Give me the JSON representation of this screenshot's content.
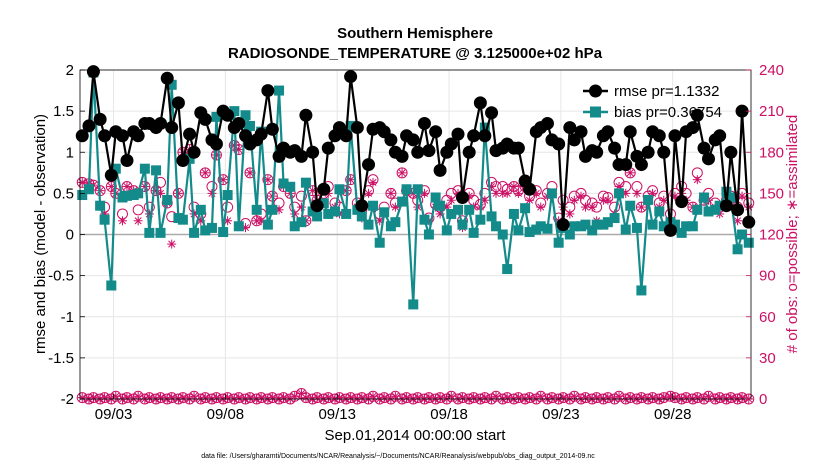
{
  "chart_data": {
    "type": "line",
    "title": "Southern Hemisphere",
    "subtitle": "RADIOSONDE_TEMPERATURE @ 3.125000e+02 hPa",
    "xlabel": "Sep.01,2014 00:00:00 start",
    "ylabel": "rmse and bias (model - observation)",
    "ylabel_right": "# of obs: o=possible; ∗=assimilated",
    "footnote": "data file: /Users/gharamti/Documents/NCAR/Reanalysis/~/Documents/NCAR/Reanalysis/webpub/obs_diag_output_2014-09.nc",
    "xlim": [
      1.5,
      31.5
    ],
    "ylim": [
      -2,
      2
    ],
    "ylim_right": [
      0,
      240
    ],
    "x_tick_values": [
      3,
      8,
      13,
      18,
      23,
      28
    ],
    "x_tick_labels": [
      "09/03",
      "09/08",
      "09/13",
      "09/18",
      "09/23",
      "09/28"
    ],
    "y_tick_labels": [
      "2",
      "1.5",
      "1",
      "0.5",
      "0",
      "-0.5",
      "-1",
      "-1.5",
      "-2"
    ],
    "y_right_tick_labels": [
      "240",
      "210",
      "180",
      "150",
      "120",
      "90",
      "60",
      "30",
      "0"
    ],
    "legend": [
      "rmse pr=1.1332",
      "bias pr=0.36754"
    ],
    "colors": {
      "rmse": "#000000",
      "bias": "#138b8b",
      "obs": "#cc1166",
      "zero_line": "#aaaaaa"
    },
    "x": [
      1.6,
      1.9,
      2.1,
      2.4,
      2.6,
      2.9,
      3.1,
      3.4,
      3.6,
      3.9,
      4.1,
      4.4,
      4.6,
      4.9,
      5.1,
      5.4,
      5.6,
      5.9,
      6.1,
      6.4,
      6.6,
      6.9,
      7.1,
      7.4,
      7.6,
      7.9,
      8.1,
      8.4,
      8.6,
      8.9,
      9.1,
      9.4,
      9.6,
      9.9,
      10.1,
      10.4,
      10.6,
      10.9,
      11.1,
      11.4,
      11.6,
      11.9,
      12.1,
      12.4,
      12.6,
      12.9,
      13.1,
      13.4,
      13.6,
      13.9,
      14.1,
      14.4,
      14.6,
      14.9,
      15.1,
      15.4,
      15.6,
      15.9,
      16.1,
      16.4,
      16.6,
      16.9,
      17.1,
      17.4,
      17.6,
      17.9,
      18.1,
      18.4,
      18.6,
      18.9,
      19.1,
      19.4,
      19.6,
      19.9,
      20.1,
      20.4,
      20.6,
      20.9,
      21.1,
      21.4,
      21.6,
      21.9,
      22.1,
      22.4,
      22.6,
      22.9,
      23.1,
      23.4,
      23.6,
      23.9,
      24.1,
      24.4,
      24.6,
      24.9,
      25.1,
      25.4,
      25.6,
      25.9,
      26.1,
      26.4,
      26.6,
      26.9,
      27.1,
      27.4,
      27.6,
      27.9,
      28.1,
      28.4,
      28.6,
      28.9,
      29.1,
      29.4,
      29.6,
      29.9,
      30.1,
      30.4,
      30.6,
      30.9,
      31.1,
      31.4
    ],
    "series": [
      {
        "name": "rmse",
        "values": [
          1.2,
          1.32,
          1.98,
          1.4,
          1.2,
          0.72,
          1.25,
          1.2,
          0.9,
          1.25,
          1.2,
          1.35,
          1.35,
          1.3,
          1.35,
          1.9,
          1.3,
          1.6,
          0.9,
          1.22,
          1.0,
          1.48,
          1.4,
          1.15,
          1.1,
          1.5,
          1.45,
          1.3,
          1.35,
          1.2,
          1.1,
          1.15,
          1.22,
          1.75,
          1.28,
          0.95,
          1.05,
          1.0,
          1.02,
          0.95,
          1.45,
          1.0,
          0.35,
          0.55,
          1.05,
          1.2,
          1.3,
          1.2,
          1.92,
          1.3,
          0.35,
          0.85,
          1.28,
          1.3,
          1.25,
          1.15,
          1.0,
          0.95,
          1.2,
          1.15,
          1.0,
          1.35,
          1.02,
          1.25,
          0.78,
          1.0,
          1.1,
          1.22,
          0.45,
          1.0,
          1.2,
          1.6,
          1.2,
          1.48,
          1.02,
          1.05,
          1.1,
          1.05,
          1.05,
          0.65,
          0.55,
          1.25,
          1.3,
          1.35,
          1.15,
          1.1,
          0.12,
          1.3,
          1.15,
          1.25,
          0.95,
          1.02,
          1.0,
          1.2,
          1.25,
          1.05,
          0.85,
          0.85,
          1.25,
          0.95,
          0.85,
          1.0,
          1.25,
          1.2,
          1.0,
          0.05,
          1.2,
          0.4,
          1.25,
          1.3,
          1.45,
          1.05,
          0.92,
          1.15,
          1.2,
          0.35,
          1.0,
          0.3,
          1.5,
          0.15
        ]
      },
      {
        "name": "bias",
        "values": [
          0.48,
          0.55,
          1.97,
          0.35,
          0.18,
          -0.62,
          0.8,
          0.45,
          0.47,
          0.48,
          0.5,
          0.8,
          0.02,
          0.78,
          0.02,
          0.42,
          1.82,
          0.2,
          0.18,
          0.92,
          0.02,
          0.3,
          0.05,
          0.08,
          1.43,
          0.03,
          0.48,
          1.5,
          0.1,
          1.45,
          1.32,
          0.3,
          1.25,
          0.12,
          0.3,
          1.75,
          0.62,
          0.58,
          0.1,
          0.15,
          0.63,
          0.28,
          0.22,
          0.38,
          0.25,
          0.28,
          0.55,
          0.25,
          1.32,
          0.3,
          0.22,
          0.12,
          0.35,
          -0.1,
          0.27,
          0.1,
          0.15,
          0.4,
          0.55,
          -0.85,
          0.55,
          0.18,
          0.0,
          0.45,
          0.35,
          0.05,
          0.25,
          0.3,
          0.12,
          0.3,
          0.02,
          0.18,
          1.3,
          0.22,
          0.1,
          0.0,
          -0.42,
          0.25,
          0.05,
          0.32,
          0.03,
          0.06,
          0.1,
          0.07,
          0.5,
          -0.1,
          0.08,
          0.0,
          0.1,
          0.1,
          0.12,
          0.05,
          0.12,
          0.12,
          0.15,
          0.2,
          0.5,
          0.06,
          0.35,
          0.08,
          -0.68,
          0.42,
          0.12,
          0.28,
          0.1,
          0.15,
          0.12,
          0.02,
          0.1,
          0.1,
          0.3,
          0.45,
          0.28,
          0.3,
          0.35,
          0.52,
          0.45,
          -0.18,
          0.0,
          -0.1
        ]
      },
      {
        "name": "obs_possible",
        "axis": "right",
        "values": [
          158,
          157,
          156,
          152,
          140,
          155,
          150,
          135,
          155,
          152,
          138,
          155,
          140,
          152,
          158,
          143,
          133,
          150,
          180,
          182,
          140,
          135,
          165,
          155,
          178,
          160,
          140,
          185,
          182,
          128,
          165,
          130,
          135,
          160,
          148,
          143,
          155,
          150,
          140,
          148,
          130,
          152,
          145,
          150,
          155,
          143,
          140,
          152,
          160,
          143,
          138,
          152,
          160,
          135,
          140,
          150,
          143,
          165,
          152,
          150,
          145,
          152,
          132,
          142,
          140,
          145,
          150,
          152,
          130,
          150,
          145,
          142,
          150,
          158,
          155,
          155,
          153,
          155,
          152,
          155,
          148,
          152,
          143,
          150,
          155,
          132,
          145,
          140,
          148,
          150,
          145,
          143,
          140,
          148,
          147,
          140,
          158,
          155,
          165,
          155,
          140,
          148,
          152,
          143,
          148,
          135,
          150,
          155,
          150,
          140,
          165,
          145,
          150,
          143,
          140,
          145,
          148,
          140,
          150,
          143
        ]
      },
      {
        "name": "obs_assimilated",
        "axis": "right",
        "values": [
          158,
          157,
          156,
          152,
          135,
          155,
          150,
          130,
          155,
          152,
          130,
          155,
          135,
          152,
          150,
          143,
          113,
          150,
          180,
          182,
          135,
          130,
          165,
          150,
          178,
          160,
          130,
          185,
          182,
          125,
          165,
          130,
          130,
          160,
          148,
          138,
          155,
          150,
          135,
          140,
          130,
          152,
          145,
          143,
          150,
          140,
          135,
          152,
          160,
          140,
          132,
          150,
          158,
          130,
          135,
          150,
          140,
          165,
          150,
          150,
          140,
          150,
          130,
          140,
          135,
          140,
          145,
          150,
          125,
          148,
          140,
          140,
          145,
          155,
          150,
          150,
          150,
          155,
          150,
          155,
          145,
          150,
          140,
          148,
          150,
          130,
          140,
          135,
          145,
          148,
          140,
          140,
          130,
          145,
          145,
          135,
          155,
          150,
          165,
          150,
          140,
          145,
          150,
          140,
          145,
          130,
          148,
          150,
          145,
          140,
          160,
          145,
          145,
          140,
          135,
          140,
          145,
          130,
          148,
          140
        ]
      },
      {
        "name": "obs_possible_bottom",
        "axis": "right",
        "values": [
          1,
          0,
          1,
          0,
          1,
          0,
          2,
          0,
          1,
          0,
          2,
          0,
          1,
          0,
          1,
          0,
          1,
          0,
          1,
          0,
          2,
          0,
          1,
          0,
          1,
          0,
          1,
          0,
          1,
          0,
          1,
          0,
          1,
          0,
          1,
          0,
          1,
          0,
          2,
          4,
          1,
          0,
          1,
          0,
          1,
          0,
          1,
          0,
          1,
          0,
          1,
          0,
          2,
          0,
          1,
          0,
          2,
          0,
          1,
          0,
          1,
          0,
          1,
          0,
          1,
          0,
          2,
          0,
          1,
          0,
          1,
          0,
          1,
          0,
          2,
          0,
          1,
          0,
          1,
          0,
          1,
          0,
          2,
          0,
          1,
          0,
          1,
          0,
          2,
          0,
          1,
          0,
          1,
          0,
          1,
          0,
          2,
          0,
          1,
          0,
          1,
          0,
          1,
          0,
          1,
          2,
          1,
          0,
          1,
          0,
          1,
          0,
          2,
          0,
          1,
          0,
          1,
          0,
          1,
          0
        ]
      }
    ]
  }
}
